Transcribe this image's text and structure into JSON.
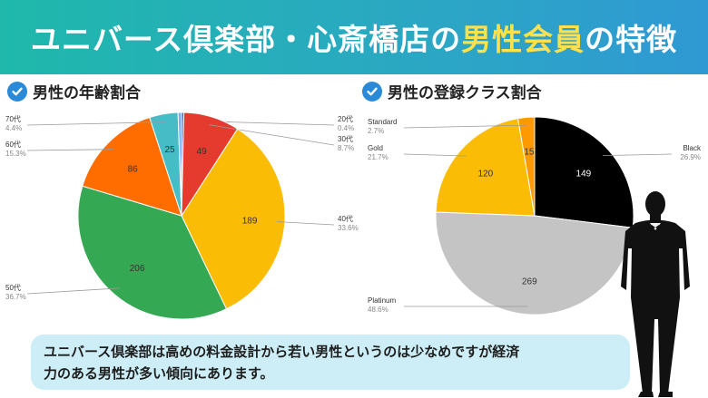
{
  "header": {
    "title_before": "ユニバース倶楽部・心斎橋店の",
    "title_highlight": "男性会員",
    "title_after": "の特徴"
  },
  "sections": {
    "age_title": "男性の年齢割合",
    "rank_title": "男性の登録クラス割合"
  },
  "chart_data": [
    {
      "type": "pie",
      "title": "男性の年齢割合",
      "slices": [
        {
          "label": "20代",
          "value": 2,
          "value_text": "",
          "percent": "0.4%",
          "color": "#3366cc"
        },
        {
          "label": "30代",
          "value": 49,
          "value_text": "49",
          "percent": "8.7%",
          "color": "#e53a2e"
        },
        {
          "label": "40代",
          "value": 189,
          "value_text": "189",
          "percent": "33.6%",
          "color": "#fbbc05"
        },
        {
          "label": "50代",
          "value": 206,
          "value_text": "206",
          "percent": "36.7%",
          "color": "#34a853"
        },
        {
          "label": "60代",
          "value": 86,
          "value_text": "86",
          "percent": "15.3%",
          "color": "#ff6d01"
        },
        {
          "label": "70代",
          "value": 25,
          "value_text": "25",
          "percent": "4.4%",
          "color": "#46bdc6"
        },
        {
          "label": "",
          "value": 3,
          "value_text": "",
          "percent": "",
          "color": "#7baaf7"
        }
      ]
    },
    {
      "type": "pie",
      "title": "男性の登録クラス割合",
      "slices": [
        {
          "label": "Black",
          "value": 149,
          "value_text": "149",
          "percent": "26.9%",
          "color": "#000000"
        },
        {
          "label": "Platinum",
          "value": 269,
          "value_text": "269",
          "percent": "48.6%",
          "color": "#c4c4c4"
        },
        {
          "label": "Gold",
          "value": 120,
          "value_text": "120",
          "percent": "21.7%",
          "color": "#fbbc05"
        },
        {
          "label": "Standard",
          "value": 15,
          "value_text": "15",
          "percent": "2.7%",
          "color": "#ff9900"
        }
      ]
    }
  ],
  "caption": {
    "line1": "ユニバース倶楽部は高めの料金設計から若い男性というのは少なめですが経済",
    "line2": "力のある男性が多い傾向にあります。"
  },
  "icons": [
    "check-circle-icon",
    "man-silhouette-icon"
  ],
  "colors": {
    "accent": "#2b8ad8",
    "header_start": "#1fb8ab",
    "header_end": "#2f99d3",
    "highlight": "#ffe14d",
    "caption_bg": "#cdeef7"
  }
}
